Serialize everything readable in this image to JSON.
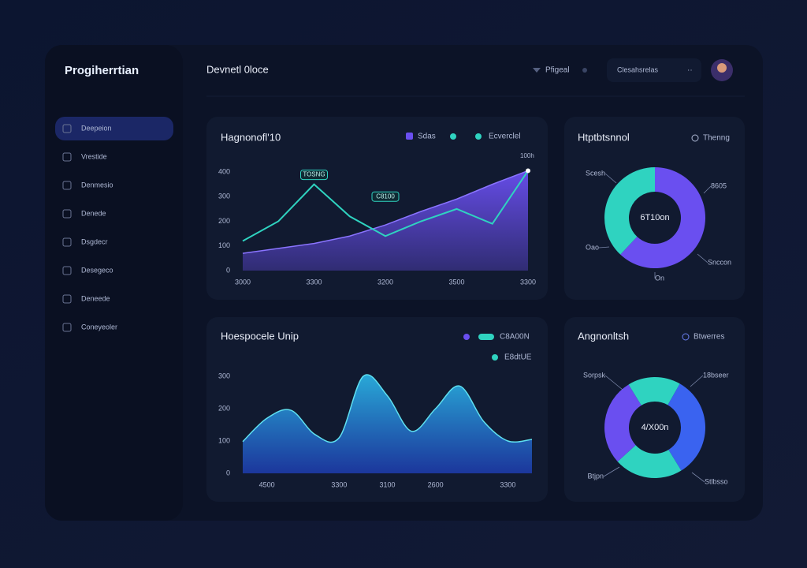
{
  "brand": "Progiherrtian",
  "header": {
    "title": "Devnetl 0loce",
    "status": "Pfigeal",
    "search": "Clesahsrelas"
  },
  "sidebar": {
    "items": [
      "Deepeion",
      "Vrestide",
      "Denmesio",
      "Denede",
      "Dsgdecr",
      "Desegeco",
      "Deneede",
      "Coneyeoler"
    ]
  },
  "chart_data": [
    {
      "type": "line",
      "title": "Hagnonofl'10",
      "subtitle": "100h",
      "categories": [
        "3000",
        null,
        "3300",
        null,
        "3200",
        null,
        "3500",
        null,
        "3300"
      ],
      "series": [
        {
          "name": "Sdas",
          "type": "area",
          "color": "#6a4ff0",
          "values": [
            70,
            90,
            110,
            140,
            185,
            240,
            290,
            350,
            405
          ]
        },
        {
          "name": "Ecverclel",
          "type": "line",
          "color": "#2fd3c0",
          "values": [
            120,
            200,
            350,
            220,
            140,
            200,
            250,
            190,
            405
          ]
        }
      ],
      "annotations": [
        "TOSNG",
        "C8100"
      ],
      "ylim": [
        0,
        400
      ],
      "yticks": [
        0,
        100,
        200,
        300,
        400
      ],
      "grid": false
    },
    {
      "type": "pie",
      "title": "Htptbtsnnol",
      "subtitle": "Thenng",
      "center_label": "6T10on",
      "categories": [
        "8605",
        "Scesh"
      ],
      "values": [
        62,
        38
      ],
      "colors": [
        "#6a4ff0",
        "#2fd3c0"
      ],
      "annotations": [
        "Oao",
        "Snccon",
        "On"
      ]
    },
    {
      "type": "line",
      "title": "Hoespocele Unip",
      "smooth": true,
      "categories": [
        null,
        "4500",
        null,
        null,
        "3300",
        null,
        "3100",
        null,
        "2600",
        null,
        null,
        "3300",
        null
      ],
      "series": [
        {
          "name": "C8A00N",
          "type": "area",
          "color": "#2ab0e0",
          "values": [
            98,
            170,
            195,
            120,
            110,
            300,
            240,
            130,
            200,
            270,
            160,
            100,
            105
          ]
        }
      ],
      "annotations": [
        "E8dtUE"
      ],
      "ylim": [
        0,
        300
      ],
      "yticks": [
        0,
        100,
        200,
        300
      ],
      "grid": false
    },
    {
      "type": "pie",
      "title": "Angnonltsh",
      "subtitle": "Btwerres",
      "center_label": "4/X00n",
      "categories": [
        "Sorpsk",
        "18bseer",
        "Stlbsso",
        "Btjpn"
      ],
      "values": [
        17,
        33,
        22,
        28
      ],
      "colors": [
        "#2fd3c0",
        "#3a63f0",
        "#2fd3c0",
        "#6a4ff0"
      ]
    }
  ]
}
